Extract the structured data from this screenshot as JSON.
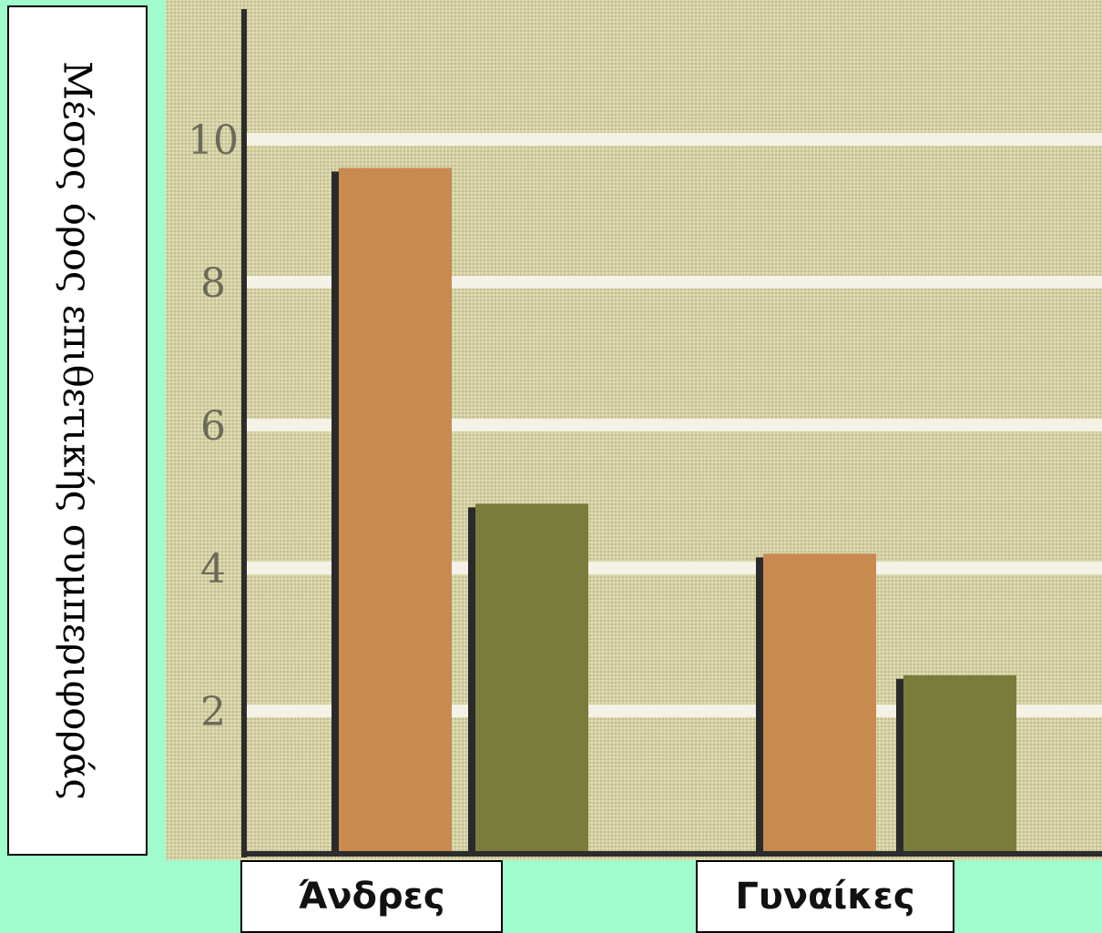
{
  "ylabel": "Μέσος όρος επιθετικής συμπεριφοράς",
  "colors": {
    "background": "#a0fbcd",
    "bar_orange": "#c88a4f",
    "bar_olive": "#7a7c3c",
    "axis": "#2c2c2c",
    "gridline": "#f4f1e6"
  },
  "chart_data": {
    "type": "bar",
    "categories": [
      "Άνδρες",
      "Γυναίκες"
    ],
    "category_labels": [
      "Άνδρες",
      "Γυναίκες"
    ],
    "series": [
      {
        "values": [
          9.6,
          4.2
        ],
        "color": "#c88a4f"
      },
      {
        "values": [
          4.9,
          2.5
        ],
        "color": "#7a7c3c"
      }
    ],
    "yticks": [
      "2",
      "4",
      "6",
      "8",
      "10"
    ],
    "ylim": [
      0,
      12
    ],
    "grid": true,
    "legend": false
  }
}
